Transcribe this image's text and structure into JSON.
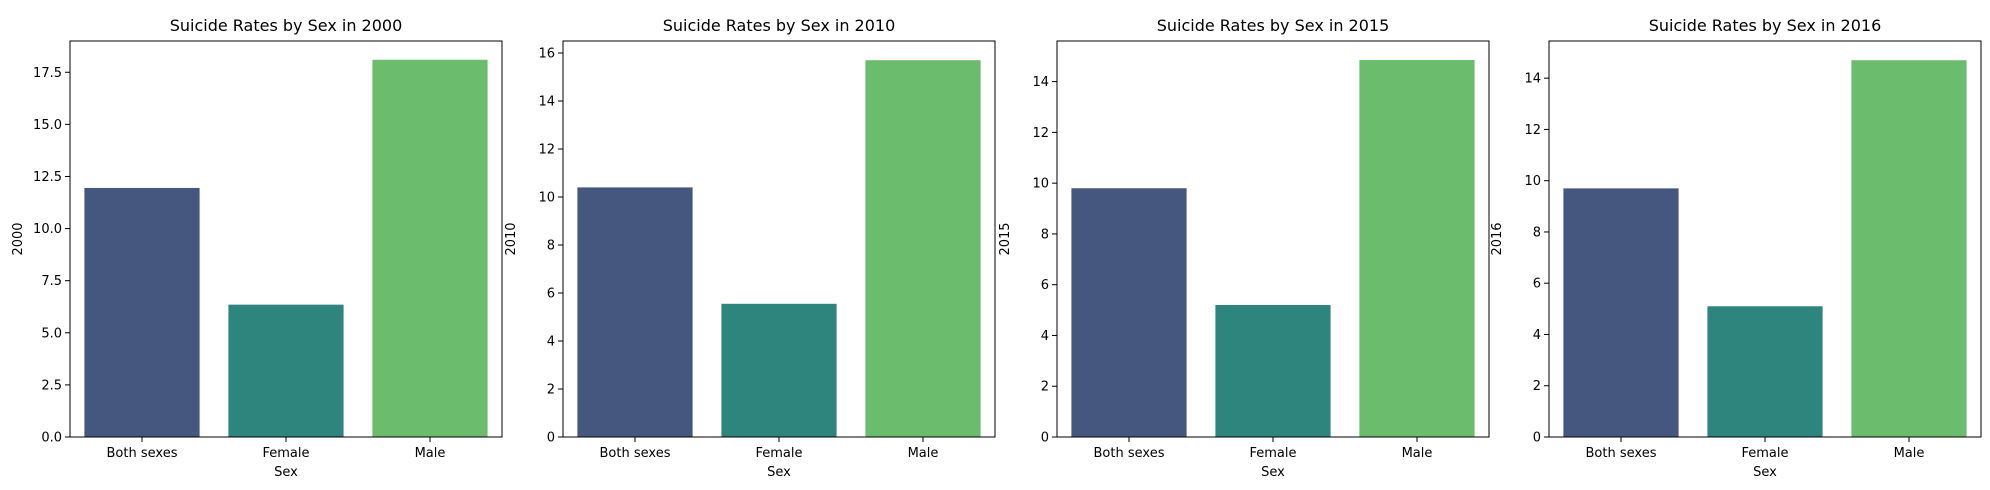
{
  "chart_data": [
    {
      "type": "bar",
      "title": "Suicide Rates by Sex in 2000",
      "xlabel": "Sex",
      "ylabel": "2000",
      "categories": [
        "Both sexes",
        "Female",
        "Male"
      ],
      "values": [
        11.95,
        6.35,
        18.1
      ],
      "ylim": [
        0,
        19.0
      ],
      "yticks": [
        0.0,
        2.5,
        5.0,
        7.5,
        10.0,
        12.5,
        15.0,
        17.5
      ],
      "ytick_decimals": 1,
      "grid": false
    },
    {
      "type": "bar",
      "title": "Suicide Rates by Sex in 2010",
      "xlabel": "Sex",
      "ylabel": "2010",
      "categories": [
        "Both sexes",
        "Female",
        "Male"
      ],
      "values": [
        10.4,
        5.55,
        15.7
      ],
      "ylim": [
        0,
        16.5
      ],
      "yticks": [
        0,
        2,
        4,
        6,
        8,
        10,
        12,
        14,
        16
      ],
      "ytick_decimals": 0,
      "grid": false
    },
    {
      "type": "bar",
      "title": "Suicide Rates by Sex in 2015",
      "xlabel": "Sex",
      "ylabel": "2015",
      "categories": [
        "Both sexes",
        "Female",
        "Male"
      ],
      "values": [
        9.8,
        5.2,
        14.85
      ],
      "ylim": [
        0,
        15.6
      ],
      "yticks": [
        0,
        2,
        4,
        6,
        8,
        10,
        12,
        14
      ],
      "ytick_decimals": 0,
      "grid": false
    },
    {
      "type": "bar",
      "title": "Suicide Rates by Sex in 2016",
      "xlabel": "Sex",
      "ylabel": "2016",
      "categories": [
        "Both sexes",
        "Female",
        "Male"
      ],
      "values": [
        9.7,
        5.1,
        14.7
      ],
      "ylim": [
        0,
        15.45
      ],
      "yticks": [
        0,
        2,
        4,
        6,
        8,
        10,
        12,
        14
      ],
      "ytick_decimals": 0,
      "grid": false
    }
  ],
  "colors": {
    "Both sexes": "#46577f",
    "Female": "#2e857e",
    "Male": "#6cbc6e",
    "axis": "#000000",
    "background": "#ffffff"
  }
}
